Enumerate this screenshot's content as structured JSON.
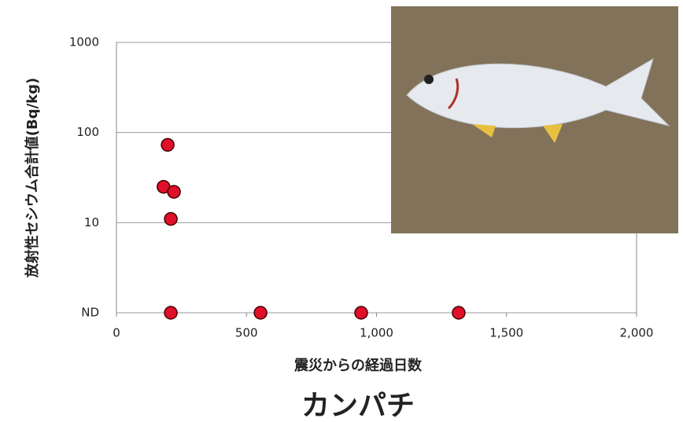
{
  "chart_data": {
    "type": "scatter",
    "title": "カンパチ",
    "x_label": "震災からの経過日数",
    "y_label": "放射性セシウム合計値(Bq/kg)",
    "x": [
      197,
      181,
      221,
      209,
      209,
      554,
      941,
      1316
    ],
    "values": [
      73,
      25,
      22,
      11,
      1,
      1,
      1,
      1
    ],
    "color": "#e0102a",
    "xlim": [
      0,
      2000
    ],
    "xticks": [
      0,
      500,
      {
        "value": 1000,
        "label": "1,000"
      },
      {
        "value": 1500,
        "label": "1,500"
      },
      {
        "value": 2000,
        "label": "2,000"
      }
    ],
    "ylim": [
      1,
      1000
    ],
    "yticks": [
      {
        "value": 1,
        "label": "ND"
      },
      10,
      100,
      1000
    ],
    "y_log": true,
    "grid": true
  }
}
